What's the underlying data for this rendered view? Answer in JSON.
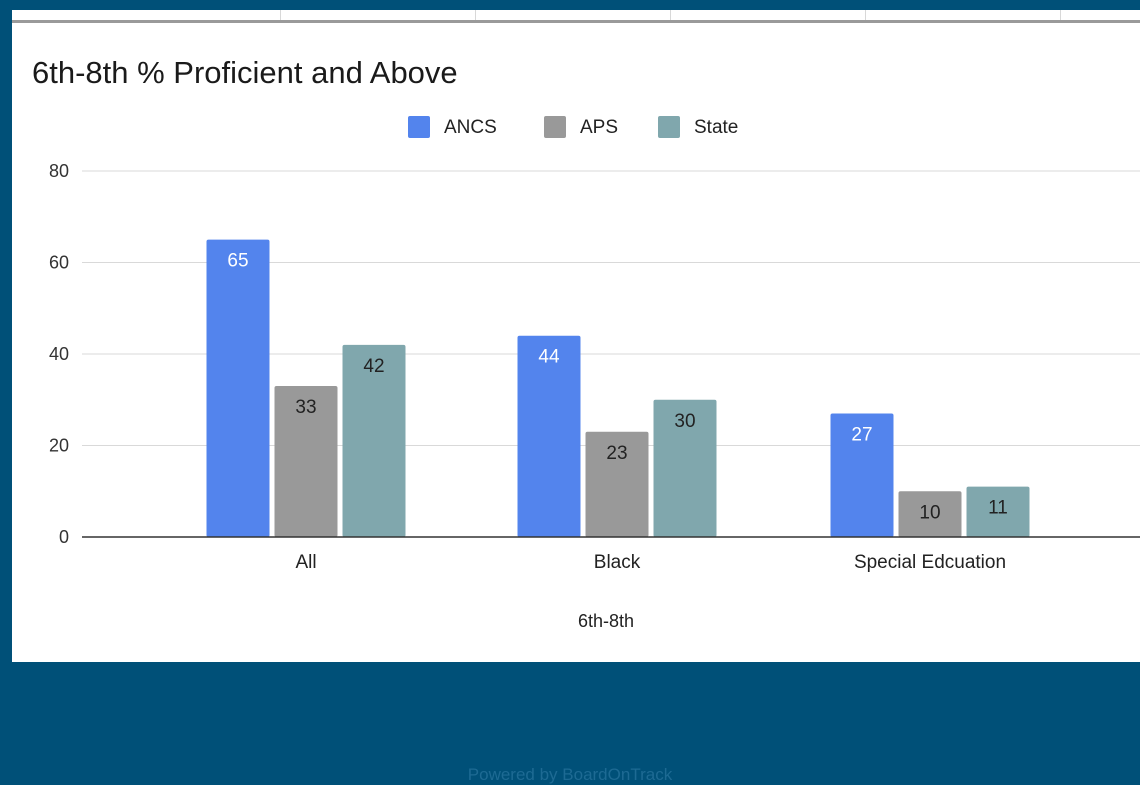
{
  "colors": {
    "background": "#005078",
    "panel": "#ffffff",
    "gridline": "#d9d9d9",
    "axis": "#333333"
  },
  "footer": {
    "text": "Powered by BoardOnTrack"
  },
  "chart_data": {
    "type": "bar",
    "title": "6th-8th % Proficient and Above",
    "xlabel": "6th-8th",
    "ylabel": "",
    "categories": [
      "All",
      "Black",
      "Special Edcuation"
    ],
    "series": [
      {
        "name": "ANCS",
        "values": [
          65,
          44,
          27
        ],
        "color": "#5384ed",
        "label_color": "#ffffff"
      },
      {
        "name": "APS",
        "values": [
          33,
          23,
          10
        ],
        "color": "#999999",
        "label_color": "#222222"
      },
      {
        "name": "State",
        "values": [
          42,
          30,
          11
        ],
        "color": "#80a7ad",
        "label_color": "#222222"
      }
    ],
    "ylim": [
      0,
      80
    ],
    "yticks": [
      0,
      20,
      40,
      60,
      80
    ],
    "grid": true,
    "legend": "top-center"
  }
}
